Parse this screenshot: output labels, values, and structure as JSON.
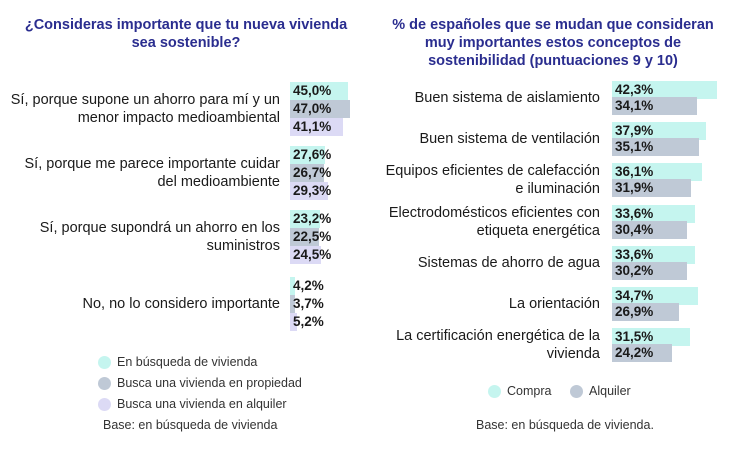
{
  "chart_data": [
    {
      "type": "bar",
      "orientation": "horizontal",
      "title": "¿Consideras importante que tu nueva vivienda\nsea sostenible?",
      "categories": [
        "Sí, porque supone un ahorro para mí y un\nmenor impacto medioambiental",
        "Sí, porque me parece importante cuidar\ndel medioambiente",
        "Sí, porque supondrá un ahorro en los\nsuministros",
        "No, no lo considero importante"
      ],
      "series": [
        {
          "name": "En búsqueda de vivienda",
          "values": [
            45.0,
            27.6,
            23.2,
            4.2
          ],
          "labels": [
            "45,0%",
            "27,6%",
            "23,2%",
            "4,2%"
          ],
          "color": "#c5f5ef"
        },
        {
          "name": "Busca una vivienda en propiedad",
          "values": [
            47.0,
            26.7,
            22.5,
            3.7
          ],
          "labels": [
            "47,0%",
            "26,7%",
            "22,5%",
            "3,7%"
          ],
          "color": "#bfc9d6"
        },
        {
          "name": "Busca una vivienda en alquiler",
          "values": [
            41.1,
            29.3,
            24.5,
            5.2
          ],
          "labels": [
            "41,1%",
            "29,3%",
            "24,5%",
            "5,2%"
          ],
          "color": "#dcdaf5"
        }
      ],
      "legend_position": "bottom",
      "grid": false,
      "note": "Base: en búsqueda de vivienda"
    },
    {
      "type": "bar",
      "orientation": "horizontal",
      "title": "% de españoles que se mudan que consideran\nmuy importantes estos conceptos de\nsostenibilidad (puntuaciones 9 y 10)",
      "categories": [
        "Buen sistema de aislamiento",
        "Buen sistema de ventilación",
        "Equipos eficientes de calefacción\ne iluminación",
        "Electrodomésticos eficientes con\netiqueta energética",
        "Sistemas de ahorro de agua",
        "La orientación",
        "La certificación energética de la\nvivienda"
      ],
      "series": [
        {
          "name": "Compra",
          "values": [
            42.3,
            37.9,
            36.1,
            33.6,
            33.6,
            34.7,
            31.5
          ],
          "labels": [
            "42,3%",
            "37,9%",
            "36,1%",
            "33,6%",
            "33,6%",
            "34,7%",
            "31,5%"
          ],
          "color": "#c5f5ef"
        },
        {
          "name": "Alquiler",
          "values": [
            34.1,
            35.1,
            31.9,
            30.4,
            30.2,
            26.9,
            24.2
          ],
          "labels": [
            "34,1%",
            "35,1%",
            "31,9%",
            "30,4%",
            "30,2%",
            "26,9%",
            "24,2%"
          ],
          "color": "#bfc9d6"
        }
      ],
      "legend_position": "bottom",
      "grid": false,
      "note": "Base: en búsqueda de vivienda."
    }
  ]
}
